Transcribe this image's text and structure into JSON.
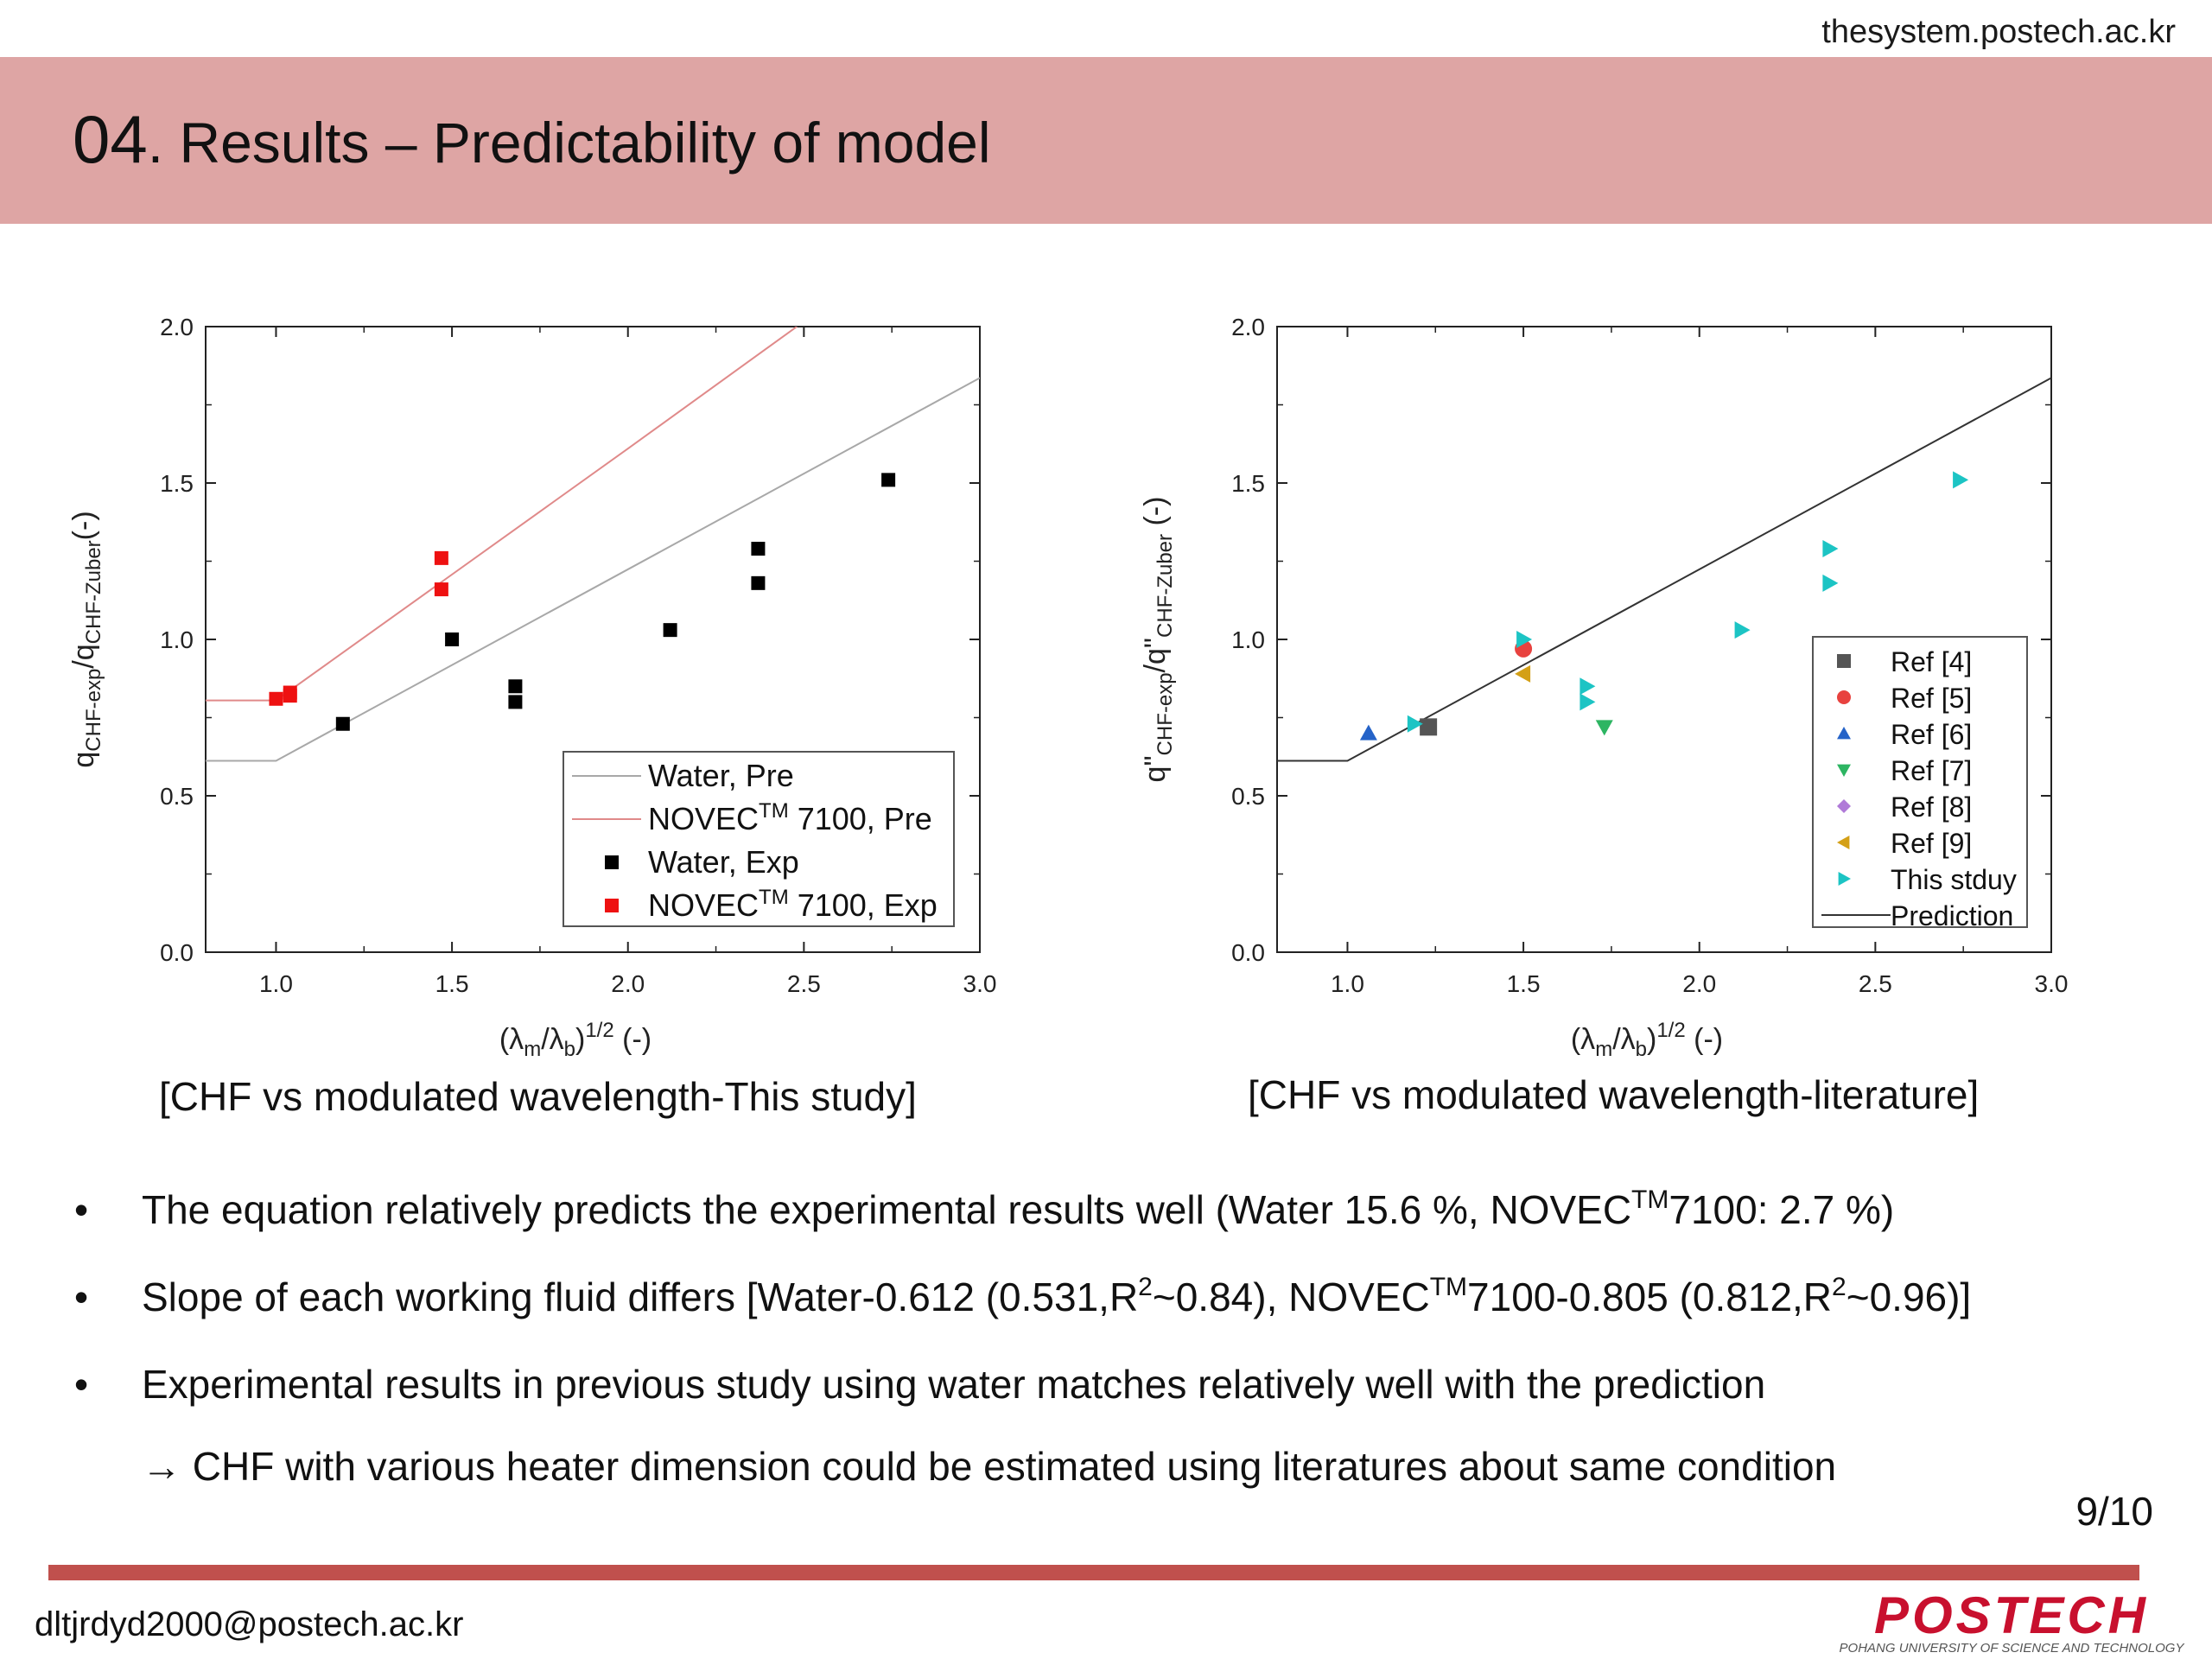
{
  "header": {
    "url": "thesystem.postech.ac.kr",
    "title_number": "04",
    "title_text": ". Results – Predictability of model"
  },
  "captions": {
    "left": "[CHF vs modulated wavelength-This study]",
    "right": "[CHF vs modulated wavelength-literature]"
  },
  "bullets": [
    {
      "bullet": "•",
      "parts": [
        "The equation relatively predicts the experimental results well (Water 15.6 %, NOVEC",
        "TM",
        "7100: 2.7 %)"
      ]
    },
    {
      "bullet": "•",
      "parts": [
        "Slope of each working fluid differs [Water-0.612 (0.531,R",
        "2",
        "~0.84), NOVEC",
        "TM",
        "7100-0.805 (0.812,R",
        "2",
        "~0.96)]"
      ]
    },
    {
      "bullet": "•",
      "parts": [
        "Experimental results in previous study using water matches relatively well with the prediction"
      ]
    }
  ],
  "arrow_line": {
    "arrow": "→",
    "text": "CHF with various heater dimension could be estimated using literatures about same condition"
  },
  "page_number": "9/10",
  "footer": {
    "email": "dltjrdyd2000@postech.ac.kr",
    "logo_text": "POSTECH",
    "logo_subtext": "POHANG UNIVERSITY OF SCIENCE AND TECHNOLOGY"
  },
  "colors": {
    "banner": "#dea5a4",
    "footer_bar": "#c0504d",
    "logo": "#c8102e"
  },
  "chart_data": [
    {
      "type": "scatter",
      "xlabel_parts": [
        "(λ",
        "m",
        "/λ",
        "b",
        ")",
        "1/2",
        "  (-)"
      ],
      "ylabel_parts": [
        "q",
        "CHF-exp",
        "/q",
        "CHF-Zuber",
        "(-)"
      ],
      "xlim": [
        0.8,
        3.0
      ],
      "ylim": [
        0.0,
        2.0
      ],
      "xticks": [
        "1.0",
        "1.5",
        "2.0",
        "2.5",
        "3.0"
      ],
      "xtick_values": [
        1.0,
        1.5,
        2.0,
        2.5,
        3.0
      ],
      "yticks": [
        "0.0",
        "0.5",
        "1.0",
        "1.5",
        "2.0"
      ],
      "ytick_values": [
        0.0,
        0.5,
        1.0,
        1.5,
        2.0
      ],
      "legend_position": "bottom-right",
      "lines": [
        {
          "name": "Water, Pre",
          "color": "#a8a8a8",
          "points": [
            [
              0.8,
              0.612
            ],
            [
              1.0,
              0.612
            ],
            [
              3.0,
              1.836
            ]
          ]
        },
        {
          "name_parts": [
            "NOVEC",
            "TM",
            " 7100, Pre"
          ],
          "color": "#e08a8a",
          "points": [
            [
              0.8,
              0.805
            ],
            [
              1.0,
              0.805
            ],
            [
              2.0,
              1.61
            ],
            [
              2.48,
              2.0
            ]
          ]
        }
      ],
      "series": [
        {
          "name": "Water, Exp",
          "color": "#000000",
          "marker": "square",
          "points": [
            [
              1.19,
              0.73
            ],
            [
              1.5,
              1.0
            ],
            [
              1.68,
              0.85
            ],
            [
              1.68,
              0.8
            ],
            [
              2.12,
              1.03
            ],
            [
              2.37,
              1.29
            ],
            [
              2.37,
              1.18
            ],
            [
              2.74,
              1.51
            ]
          ]
        },
        {
          "name_parts": [
            "NOVEC",
            "TM",
            " 7100, Exp"
          ],
          "color": "#ee1111",
          "marker": "square",
          "points": [
            [
              1.0,
              0.81
            ],
            [
              1.04,
              0.83
            ],
            [
              1.04,
              0.82
            ],
            [
              1.47,
              1.26
            ],
            [
              1.47,
              1.16
            ]
          ]
        }
      ]
    },
    {
      "type": "scatter",
      "xlabel_parts": [
        "(λ",
        "m",
        "/λ",
        "b",
        ")",
        "1/2",
        "  (-)"
      ],
      "ylabel_parts": [
        "q\"",
        "CHF-exp",
        "/q\"",
        "CHF-Zuber",
        " (-)"
      ],
      "xlim": [
        0.8,
        3.0
      ],
      "ylim": [
        0.0,
        2.0
      ],
      "xticks": [
        "1.0",
        "1.5",
        "2.0",
        "2.5",
        "3.0"
      ],
      "xtick_values": [
        1.0,
        1.5,
        2.0,
        2.5,
        3.0
      ],
      "yticks": [
        "0.0",
        "0.5",
        "1.0",
        "1.5",
        "2.0"
      ],
      "ytick_values": [
        0.0,
        0.5,
        1.0,
        1.5,
        2.0
      ],
      "legend_position": "right",
      "lines": [
        {
          "name": "Prediction",
          "color": "#333333",
          "points": [
            [
              0.8,
              0.612
            ],
            [
              1.0,
              0.612
            ],
            [
              3.0,
              1.836
            ]
          ]
        }
      ],
      "series": [
        {
          "name": "Ref [4]",
          "color": "#555555",
          "marker": "square",
          "points": [
            [
              1.23,
              0.72
            ]
          ]
        },
        {
          "name": "Ref [5]",
          "color": "#e8423f",
          "marker": "circle",
          "points": [
            [
              1.5,
              0.97
            ]
          ]
        },
        {
          "name": "Ref [6]",
          "color": "#2563c8",
          "marker": "triangle-up",
          "points": [
            [
              1.06,
              0.7
            ]
          ]
        },
        {
          "name": "Ref [7]",
          "color": "#2db562",
          "marker": "triangle-down",
          "points": [
            [
              1.73,
              0.72
            ]
          ]
        },
        {
          "name": "Ref [8]",
          "color": "#b07ad8",
          "marker": "diamond",
          "points": []
        },
        {
          "name": "Ref [9]",
          "color": "#d4a017",
          "marker": "triangle-left",
          "points": [
            [
              1.5,
              0.89
            ]
          ]
        },
        {
          "name": "This stduy",
          "color": "#1cc4c4",
          "marker": "triangle-right",
          "points": [
            [
              1.19,
              0.73
            ],
            [
              1.5,
              1.0
            ],
            [
              1.68,
              0.85
            ],
            [
              1.68,
              0.8
            ],
            [
              2.12,
              1.03
            ],
            [
              2.37,
              1.29
            ],
            [
              2.37,
              1.18
            ],
            [
              2.74,
              1.51
            ]
          ]
        }
      ]
    }
  ]
}
